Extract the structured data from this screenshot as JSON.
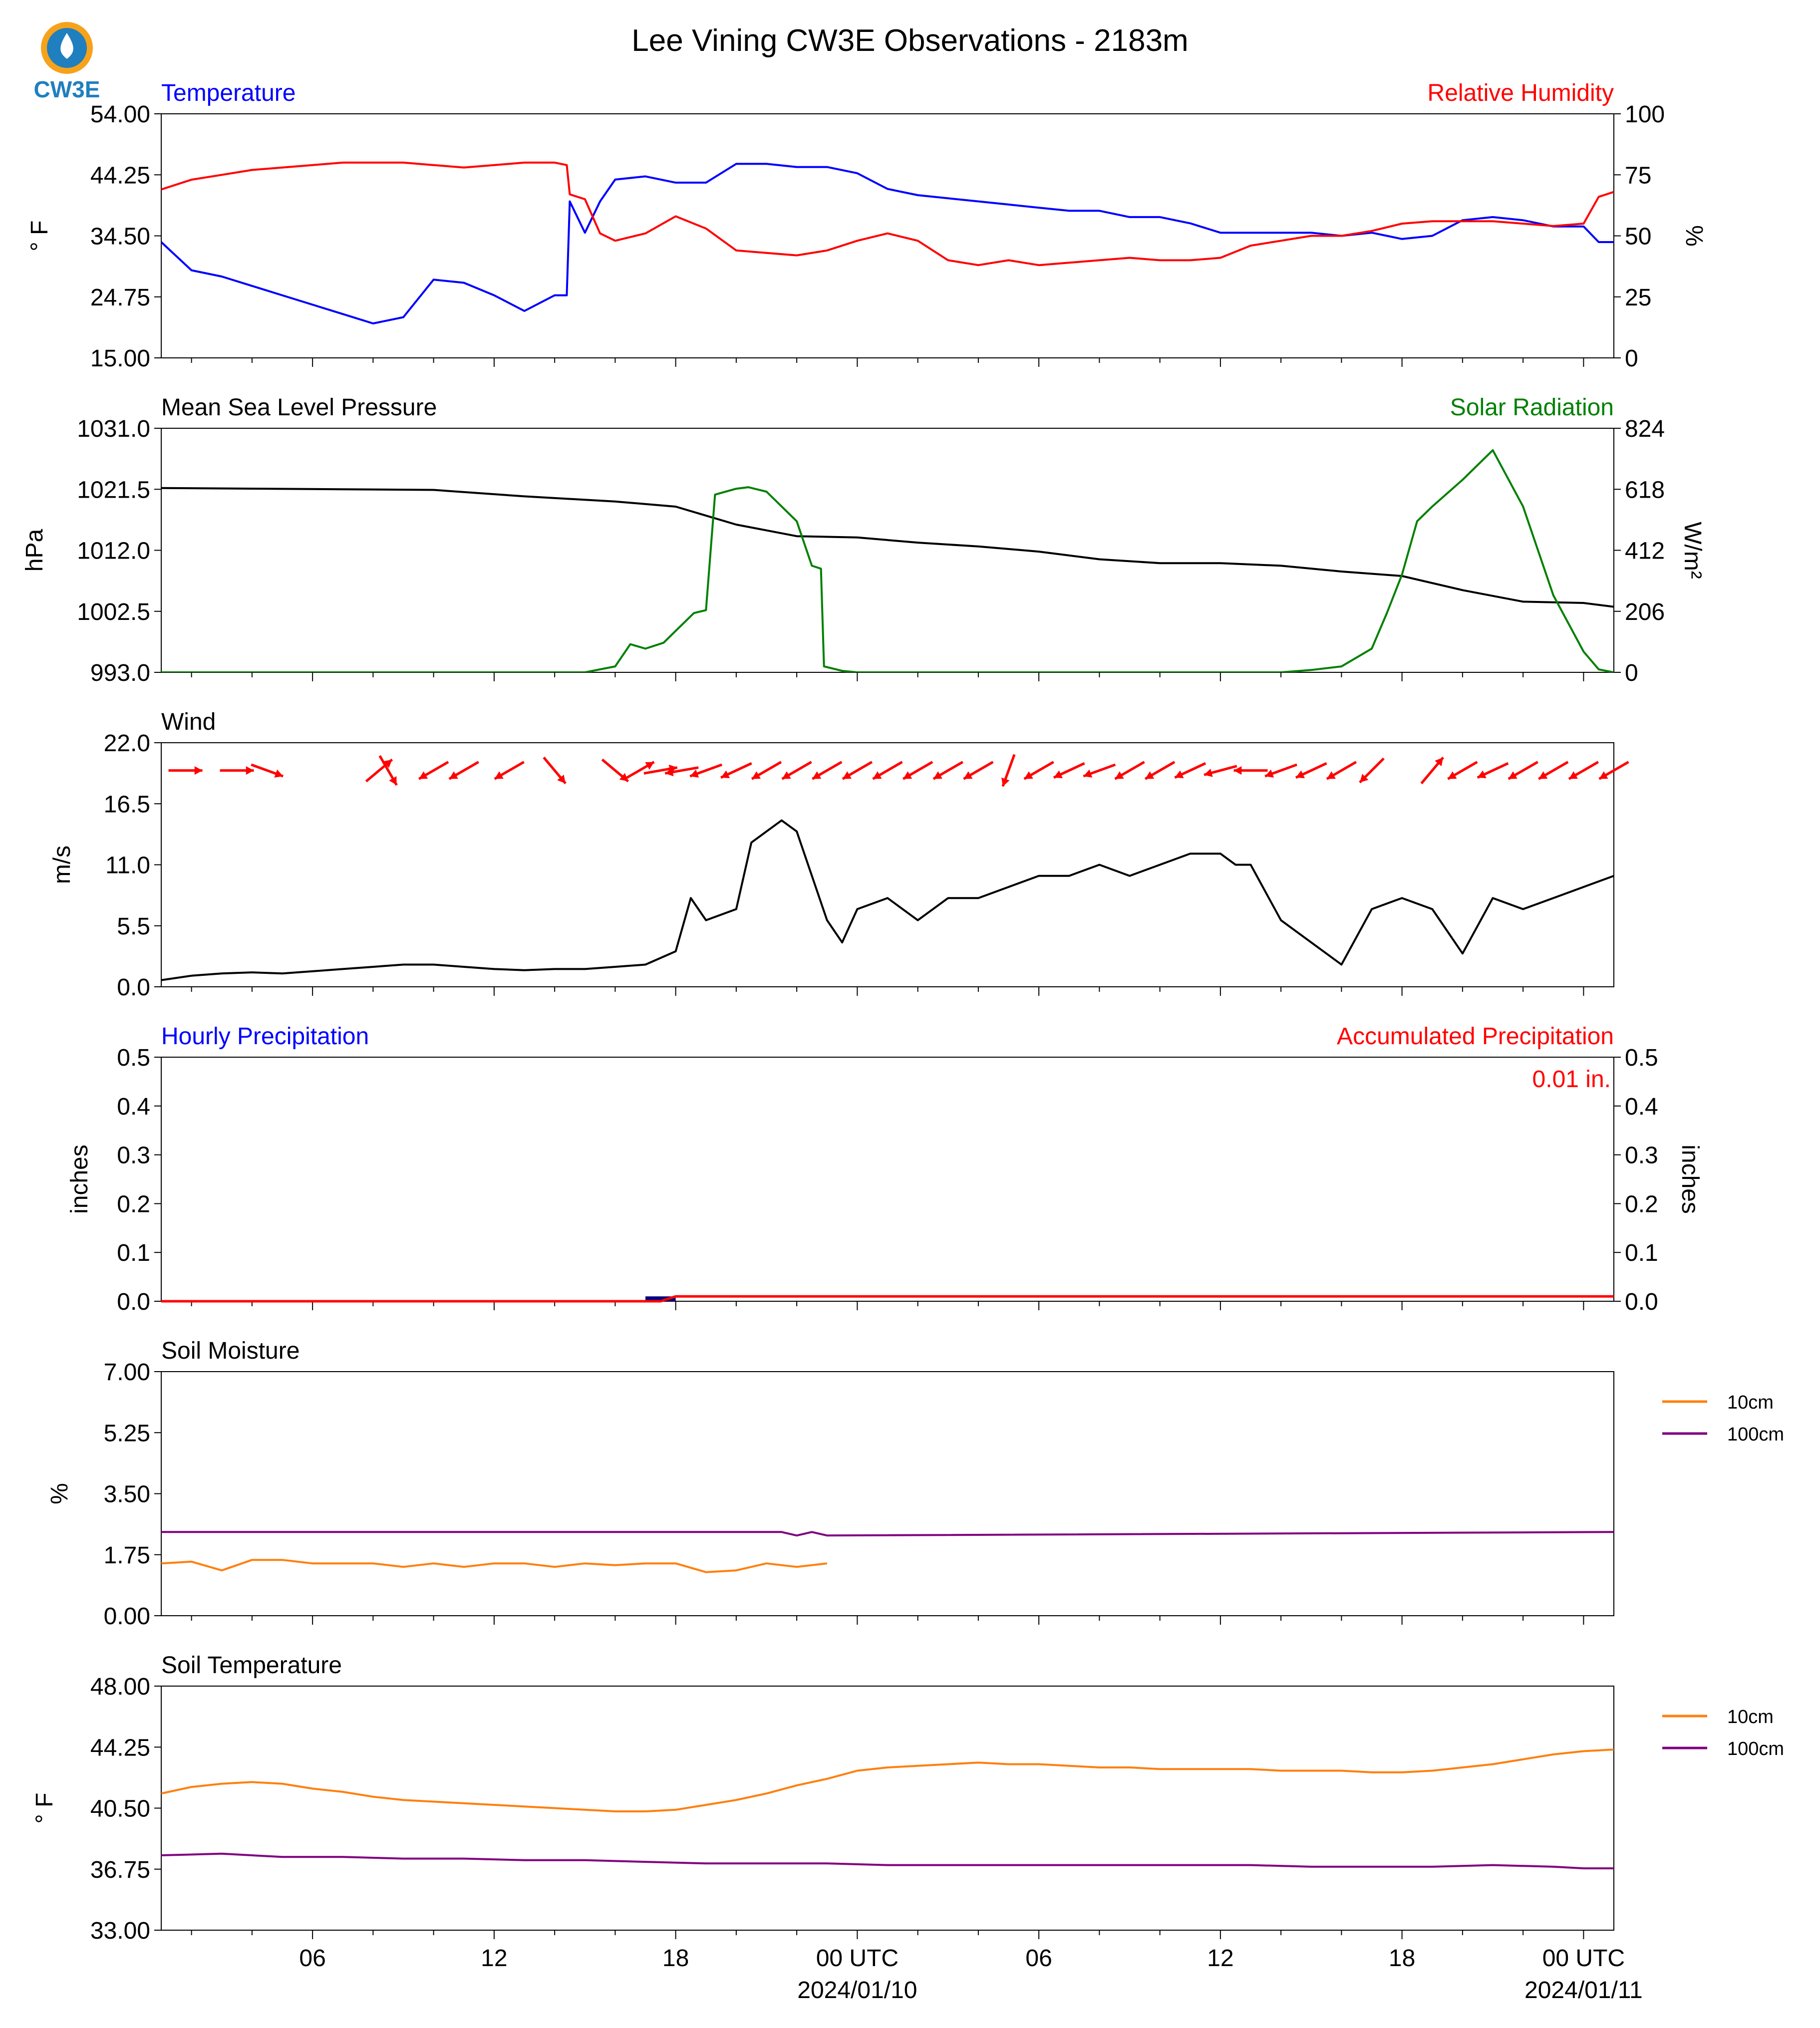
{
  "title": "Lee Vining CW3E Observations - 2183m",
  "logo": {
    "text": "CW3E",
    "icon": "cw3e-water-drop-logo"
  },
  "colors": {
    "temperature": "#0000ff",
    "humidity": "#ff0000",
    "pressure": "#000000",
    "solar": "#008000",
    "wind": "#000000",
    "arrows": "#ff0000",
    "hourly": "#0000ff",
    "accum": "#ff0000",
    "soil10": "#ff7f0e",
    "soil100": "#800080",
    "hourly_bar": "#000080"
  },
  "x_axis": {
    "tick_labels": [
      "06",
      "12",
      "18",
      "00 UTC",
      "06",
      "12",
      "18",
      "00 UTC"
    ],
    "tick_hours": [
      6,
      12,
      18,
      24,
      30,
      36,
      42,
      48
    ],
    "date_labels": [
      {
        "text": "2024/01/10",
        "hour": 24
      },
      {
        "text": "2024/01/11",
        "hour": 48
      }
    ],
    "range_hours": [
      1,
      49
    ]
  },
  "chart_data": [
    {
      "type": "line",
      "title_left": "Temperature",
      "title_right": "Relative Humidity",
      "ylabel": "° F",
      "ylabel_right": "%",
      "ylim": [
        15,
        54
      ],
      "ylim_right": [
        0,
        100
      ],
      "yticks": [
        "15.00",
        "24.75",
        "34.50",
        "44.25",
        "54.00"
      ],
      "yticks_right": [
        "0",
        "25",
        "50",
        "75",
        "100"
      ],
      "series": [
        {
          "name": "Temperature",
          "axis": "left",
          "x": [
            1,
            2,
            3,
            4,
            5,
            6,
            7,
            8,
            9,
            10,
            11,
            12,
            13,
            14,
            14.4,
            14.5,
            15,
            15.5,
            16,
            17,
            18,
            19,
            20,
            21,
            22,
            23,
            24,
            25,
            26,
            27,
            28,
            29,
            30,
            31,
            32,
            33,
            34,
            35,
            36,
            37,
            38,
            39,
            40,
            41,
            42,
            43,
            44,
            45,
            46,
            47,
            48,
            48.5,
            49
          ],
          "y": [
            33.5,
            29,
            28,
            26.5,
            25,
            23.5,
            22,
            20.5,
            21.5,
            27.5,
            27,
            25,
            22.5,
            25,
            25,
            40,
            35,
            40,
            43.5,
            44,
            43,
            43,
            46,
            46,
            45.5,
            45.5,
            44.5,
            42,
            41,
            40.5,
            40,
            39.5,
            39,
            38.5,
            38.5,
            37.5,
            37.5,
            36.5,
            35,
            35,
            35,
            35,
            34.5,
            35,
            34,
            34.5,
            37,
            37.5,
            37,
            36,
            36,
            33.5,
            33.5
          ]
        },
        {
          "name": "Relative Humidity",
          "axis": "right",
          "x": [
            1,
            2,
            3,
            4,
            5,
            6,
            7,
            8,
            9,
            10,
            11,
            12,
            13,
            14,
            14.4,
            14.5,
            15,
            15.5,
            16,
            17,
            18,
            19,
            20,
            21,
            22,
            23,
            24,
            25,
            26,
            27,
            28,
            29,
            30,
            31,
            32,
            33,
            34,
            35,
            36,
            37,
            38,
            39,
            40,
            41,
            42,
            43,
            44,
            45,
            46,
            47,
            48,
            48.5,
            49
          ],
          "y": [
            69,
            73,
            75,
            77,
            78,
            79,
            80,
            80,
            80,
            79,
            78,
            79,
            80,
            80,
            79,
            67,
            65,
            51,
            48,
            51,
            58,
            53,
            44,
            43,
            42,
            44,
            48,
            51,
            48,
            40,
            38,
            40,
            38,
            39,
            40,
            41,
            40,
            40,
            41,
            46,
            48,
            50,
            50,
            52,
            55,
            56,
            56,
            56,
            55,
            54,
            55,
            66,
            68
          ]
        }
      ]
    },
    {
      "type": "line",
      "title_left": "Mean Sea Level Pressure",
      "title_right": "Solar Radiation",
      "ylabel": "hPa",
      "ylabel_right": "W/m²",
      "ylim": [
        993,
        1031
      ],
      "ylim_right": [
        0,
        824
      ],
      "yticks": [
        "993.0",
        "1002.5",
        "1012.0",
        "1021.5",
        "1031.0"
      ],
      "yticks_right": [
        "0",
        "206",
        "412",
        "618",
        "824"
      ],
      "series": [
        {
          "name": "Mean Sea Level Pressure",
          "axis": "left",
          "x": [
            1,
            4,
            7,
            10,
            13,
            16,
            18,
            20,
            22,
            24,
            26,
            28,
            30,
            32,
            34,
            36,
            38,
            40,
            42,
            44,
            46,
            48,
            49
          ],
          "y": [
            1021.7,
            1021.6,
            1021.5,
            1021.4,
            1020.4,
            1019.6,
            1018.8,
            1016,
            1014.2,
            1014,
            1013.2,
            1012.6,
            1011.8,
            1010.6,
            1010.0,
            1010.0,
            1009.6,
            1008.7,
            1008.0,
            1005.8,
            1004.0,
            1003.8,
            1003.2
          ]
        },
        {
          "name": "Solar Radiation",
          "axis": "right",
          "x": [
            1,
            15,
            16,
            16.5,
            17,
            17.6,
            18,
            18.6,
            19,
            19.3,
            20,
            20.4,
            21,
            22,
            22.5,
            22.8,
            22.9,
            23.5,
            24,
            24.5,
            38,
            39,
            40,
            41,
            41.5,
            42,
            42.5,
            43,
            44,
            45,
            46,
            47,
            48,
            48.5,
            49
          ],
          "y": [
            0,
            0,
            20,
            95,
            80,
            100,
            140,
            200,
            210,
            600,
            620,
            625,
            610,
            510,
            360,
            350,
            20,
            5,
            0,
            0,
            0,
            8,
            20,
            80,
            200,
            330,
            510,
            560,
            650,
            750,
            560,
            260,
            70,
            10,
            0
          ]
        }
      ]
    },
    {
      "type": "line",
      "title_left": "Wind",
      "ylabel": "m/s",
      "ylim": [
        0,
        22
      ],
      "yticks": [
        "0.0",
        "5.5",
        "11.0",
        "16.5",
        "22.0"
      ],
      "series": [
        {
          "name": "Wind",
          "axis": "left",
          "x": [
            1,
            2,
            3,
            4,
            5,
            6,
            7,
            8,
            9,
            10,
            11,
            12,
            13,
            14,
            15,
            16,
            17,
            18,
            18.5,
            19,
            20,
            20.5,
            21,
            21.5,
            22,
            23,
            23.5,
            24,
            25,
            26,
            27,
            28,
            29,
            30,
            31,
            32,
            33,
            34,
            35,
            36,
            36.5,
            37,
            38,
            39,
            40,
            41,
            42,
            43,
            44,
            45,
            46,
            47,
            48,
            49
          ],
          "y": [
            0.6,
            1,
            1.2,
            1.3,
            1.2,
            1.4,
            1.6,
            1.8,
            2,
            2,
            1.8,
            1.6,
            1.5,
            1.6,
            1.6,
            1.8,
            2,
            3.2,
            8,
            6,
            7,
            13,
            14,
            15,
            14,
            6,
            4,
            7,
            8,
            6,
            8,
            8,
            9,
            10,
            10,
            11,
            10,
            11,
            12,
            12,
            11,
            11,
            6,
            4,
            2,
            7,
            8,
            7,
            3,
            8,
            7,
            8,
            9,
            10
          ]
        }
      ],
      "wind_barbs": [
        {
          "hour": 1.8,
          "dir": 270
        },
        {
          "hour": 3.5,
          "dir": 270
        },
        {
          "hour": 4.5,
          "dir": 290
        },
        {
          "hour": 8.2,
          "dir": 230
        },
        {
          "hour": 8.5,
          "dir": 330
        },
        {
          "hour": 10,
          "dir": 60
        },
        {
          "hour": 11,
          "dir": 60
        },
        {
          "hour": 12.5,
          "dir": 60
        },
        {
          "hour": 14,
          "dir": 320
        },
        {
          "hour": 16,
          "dir": 310
        },
        {
          "hour": 16.8,
          "dir": 240
        },
        {
          "hour": 17.5,
          "dir": 260
        },
        {
          "hour": 18.2,
          "dir": 80
        },
        {
          "hour": 19,
          "dir": 70
        },
        {
          "hour": 20,
          "dir": 65
        },
        {
          "hour": 21,
          "dir": 60
        },
        {
          "hour": 22,
          "dir": 60
        },
        {
          "hour": 23,
          "dir": 60
        },
        {
          "hour": 24,
          "dir": 60
        },
        {
          "hour": 25,
          "dir": 60
        },
        {
          "hour": 26,
          "dir": 60
        },
        {
          "hour": 27,
          "dir": 60
        },
        {
          "hour": 28,
          "dir": 60
        },
        {
          "hour": 29,
          "dir": 20
        },
        {
          "hour": 30,
          "dir": 60
        },
        {
          "hour": 31,
          "dir": 65
        },
        {
          "hour": 32,
          "dir": 70
        },
        {
          "hour": 33,
          "dir": 60
        },
        {
          "hour": 34,
          "dir": 60
        },
        {
          "hour": 35,
          "dir": 65
        },
        {
          "hour": 36,
          "dir": 75
        },
        {
          "hour": 37,
          "dir": 90
        },
        {
          "hour": 38,
          "dir": 70
        },
        {
          "hour": 39,
          "dir": 65
        },
        {
          "hour": 40,
          "dir": 60
        },
        {
          "hour": 41,
          "dir": 45
        },
        {
          "hour": 43,
          "dir": 220
        },
        {
          "hour": 44,
          "dir": 60
        },
        {
          "hour": 45,
          "dir": 65
        },
        {
          "hour": 46,
          "dir": 60
        },
        {
          "hour": 47,
          "dir": 60
        },
        {
          "hour": 48,
          "dir": 60
        },
        {
          "hour": 49,
          "dir": 60
        }
      ]
    },
    {
      "type": "bar",
      "title_left": "Hourly Precipitation",
      "title_right": "Accumulated Precipitation",
      "ylabel": "inches",
      "ylabel_right": "inches",
      "ylim": [
        0,
        0.5
      ],
      "ylim_right": [
        0,
        0.5
      ],
      "yticks": [
        "0.0",
        "0.1",
        "0.2",
        "0.3",
        "0.4",
        "0.5"
      ],
      "yticks_right": [
        "0.0",
        "0.1",
        "0.2",
        "0.3",
        "0.4",
        "0.5"
      ],
      "annotation": "0.01 in.",
      "hourly": [
        {
          "hour": 17,
          "value": 0.01
        }
      ],
      "accumulated": {
        "x": [
          1,
          17.5,
          18,
          49
        ],
        "y": [
          0,
          0,
          0.01,
          0.01
        ]
      }
    },
    {
      "type": "line",
      "title_left": "Soil Moisture",
      "ylabel": "%",
      "ylim": [
        0,
        7
      ],
      "yticks": [
        "0.00",
        "1.75",
        "3.50",
        "5.25",
        "7.00"
      ],
      "legend": [
        "10cm",
        "100cm"
      ],
      "legend_position": "outside-right",
      "series": [
        {
          "name": "10cm",
          "axis": "left",
          "x": [
            1,
            2,
            3,
            4,
            5,
            6,
            7,
            8,
            9,
            10,
            11,
            12,
            13,
            14,
            15,
            16,
            17,
            18,
            19,
            20,
            21,
            22,
            23
          ],
          "y": [
            1.5,
            1.55,
            1.3,
            1.6,
            1.6,
            1.5,
            1.5,
            1.5,
            1.4,
            1.5,
            1.4,
            1.5,
            1.5,
            1.4,
            1.5,
            1.45,
            1.5,
            1.5,
            1.25,
            1.3,
            1.5,
            1.4,
            1.5
          ]
        },
        {
          "name": "100cm",
          "axis": "left",
          "x": [
            1,
            21.5,
            22,
            22.5,
            23,
            49
          ],
          "y": [
            2.4,
            2.4,
            2.3,
            2.4,
            2.3,
            2.4
          ]
        }
      ]
    },
    {
      "type": "line",
      "title_left": "Soil Temperature",
      "ylabel": "° F",
      "ylim": [
        33,
        48
      ],
      "yticks": [
        "33.00",
        "36.75",
        "40.50",
        "44.25",
        "48.00"
      ],
      "legend": [
        "10cm",
        "100cm"
      ],
      "legend_position": "outside-right",
      "series": [
        {
          "name": "10cm",
          "axis": "left",
          "x": [
            1,
            2,
            3,
            4,
            5,
            6,
            7,
            8,
            9,
            10,
            11,
            12,
            13,
            14,
            15,
            16,
            17,
            18,
            19,
            20,
            21,
            22,
            23,
            24,
            25,
            26,
            27,
            28,
            29,
            30,
            31,
            32,
            33,
            34,
            35,
            36,
            37,
            38,
            39,
            40,
            41,
            42,
            43,
            44,
            45,
            46,
            47,
            48,
            49
          ],
          "y": [
            41.4,
            41.8,
            42.0,
            42.1,
            42.0,
            41.7,
            41.5,
            41.2,
            41.0,
            40.9,
            40.8,
            40.7,
            40.6,
            40.5,
            40.4,
            40.3,
            40.3,
            40.4,
            40.7,
            41.0,
            41.4,
            41.9,
            42.3,
            42.8,
            43.0,
            43.1,
            43.2,
            43.3,
            43.2,
            43.2,
            43.1,
            43.0,
            43.0,
            42.9,
            42.9,
            42.9,
            42.9,
            42.8,
            42.8,
            42.8,
            42.7,
            42.7,
            42.8,
            43.0,
            43.2,
            43.5,
            43.8,
            44.0,
            44.1
          ]
        },
        {
          "name": "100cm",
          "axis": "left",
          "x": [
            1,
            3,
            5,
            7,
            9,
            11,
            13,
            15,
            17,
            19,
            21,
            23,
            25,
            27,
            29,
            31,
            33,
            35,
            37,
            39,
            41,
            43,
            45,
            47,
            48,
            49
          ],
          "y": [
            37.6,
            37.7,
            37.5,
            37.5,
            37.4,
            37.4,
            37.3,
            37.3,
            37.2,
            37.1,
            37.1,
            37.1,
            37.0,
            37.0,
            37.0,
            37.0,
            37.0,
            37.0,
            37.0,
            36.9,
            36.9,
            36.9,
            37.0,
            36.9,
            36.8,
            36.8
          ]
        }
      ]
    }
  ]
}
